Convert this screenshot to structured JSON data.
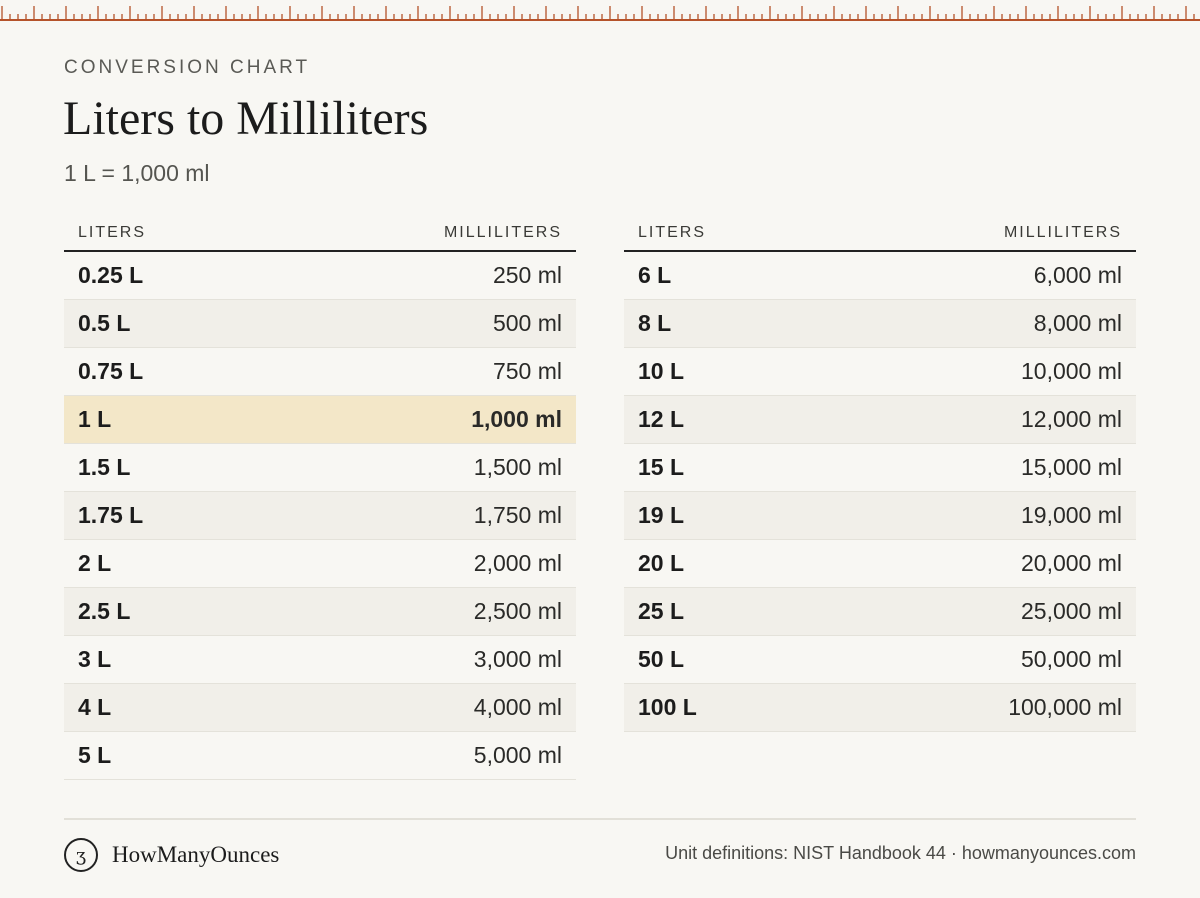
{
  "header": {
    "eyebrow": "CONVERSION CHART",
    "title": "Liters to Milliliters",
    "subtitle": "1 L = 1,000 ml"
  },
  "columns": {
    "liters": "LITERS",
    "milliliters": "MILLILITERS"
  },
  "left_rows": [
    {
      "l": "0.25 L",
      "ml": "250 ml"
    },
    {
      "l": "0.5 L",
      "ml": "500 ml"
    },
    {
      "l": "0.75 L",
      "ml": "750 ml"
    },
    {
      "l": "1 L",
      "ml": "1,000 ml",
      "highlight": true
    },
    {
      "l": "1.5 L",
      "ml": "1,500 ml"
    },
    {
      "l": "1.75 L",
      "ml": "1,750 ml"
    },
    {
      "l": "2 L",
      "ml": "2,000 ml"
    },
    {
      "l": "2.5 L",
      "ml": "2,500 ml"
    },
    {
      "l": "3 L",
      "ml": "3,000 ml"
    },
    {
      "l": "4 L",
      "ml": "4,000 ml"
    },
    {
      "l": "5 L",
      "ml": "5,000 ml"
    }
  ],
  "right_rows": [
    {
      "l": "6 L",
      "ml": "6,000 ml"
    },
    {
      "l": "8 L",
      "ml": "8,000 ml"
    },
    {
      "l": "10 L",
      "ml": "10,000 ml"
    },
    {
      "l": "12 L",
      "ml": "12,000 ml"
    },
    {
      "l": "15 L",
      "ml": "15,000 ml"
    },
    {
      "l": "19 L",
      "ml": "19,000 ml"
    },
    {
      "l": "20 L",
      "ml": "20,000 ml"
    },
    {
      "l": "25 L",
      "ml": "25,000 ml"
    },
    {
      "l": "50 L",
      "ml": "50,000 ml"
    },
    {
      "l": "100 L",
      "ml": "100,000 ml"
    }
  ],
  "footer": {
    "logo_glyph": "ʒ",
    "brand": "HowManyOunces",
    "note": "Unit definitions: NIST Handbook 44 · howmanyounces.com"
  },
  "colors": {
    "ruler": "#b5532a",
    "background": "#f8f7f3",
    "highlight": "#f3e7c8"
  },
  "icons": {
    "logo": "howmanyounces-logo-icon",
    "ruler": "ruler-ticks-decoration"
  }
}
